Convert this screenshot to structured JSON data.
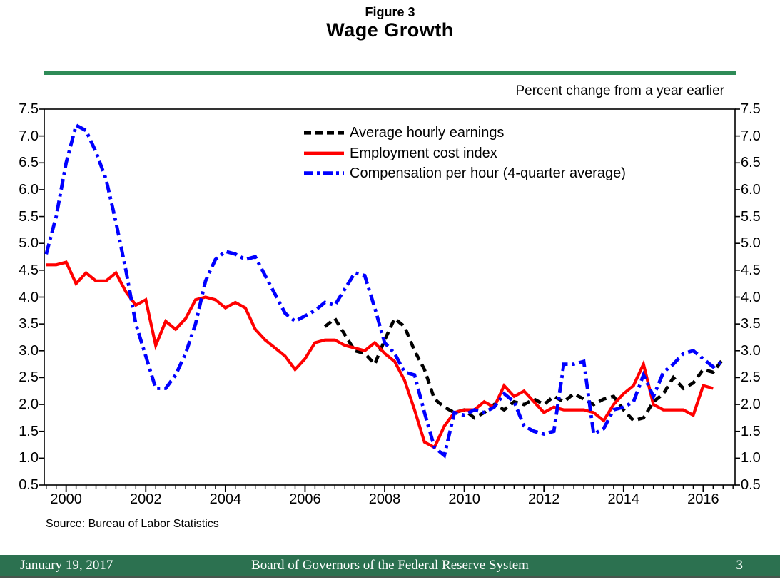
{
  "page": {
    "figure_label": "Figure 3",
    "title": "Wage Growth",
    "axis_note": "Percent change from a year earlier",
    "source": "Source:  Bureau of Labor Statistics",
    "footer": {
      "date": "January 19, 2017",
      "organization": "Board of Governors of the Federal Reserve System",
      "page_number": "3"
    }
  },
  "colors": {
    "green_rule": "#2e8b57",
    "footer_band": "#2c7150",
    "footer_border": "#47564d",
    "axis": "#000000",
    "ahe": "#000000",
    "eci": "#ff0000",
    "cph": "#0000ff"
  },
  "chart_data": {
    "type": "line",
    "title": "Wage Growth",
    "subtitle": "Figure 3",
    "ylabel": "Percent change from a year earlier",
    "xlabel": "",
    "x_range": [
      1999.45,
      2016.8
    ],
    "y_range": [
      0.5,
      7.5
    ],
    "y_ticks": [
      0.5,
      1.0,
      1.5,
      2.0,
      2.5,
      3.0,
      3.5,
      4.0,
      4.5,
      5.0,
      5.5,
      6.0,
      6.5,
      7.0,
      7.5
    ],
    "x_tick_years": [
      2000,
      2002,
      2004,
      2006,
      2008,
      2010,
      2012,
      2014,
      2016
    ],
    "minor_tick_step_years": 0.25,
    "grid": false,
    "legend_position": "inside-top-center",
    "series": [
      {
        "name": "Average hourly earnings",
        "color": "#000000",
        "style": "dashed",
        "x": [
          2006.5,
          2006.75,
          2007.0,
          2007.25,
          2007.5,
          2007.75,
          2008.0,
          2008.25,
          2008.5,
          2008.75,
          2009.0,
          2009.25,
          2009.5,
          2009.75,
          2010.0,
          2010.25,
          2010.5,
          2010.75,
          2011.0,
          2011.25,
          2011.5,
          2011.75,
          2012.0,
          2012.25,
          2012.5,
          2012.75,
          2013.0,
          2013.25,
          2013.5,
          2013.75,
          2014.0,
          2014.25,
          2014.5,
          2014.75,
          2015.0,
          2015.25,
          2015.5,
          2015.75,
          2016.0,
          2016.25,
          2016.5
        ],
        "values": [
          3.45,
          3.6,
          3.3,
          3.0,
          2.95,
          2.75,
          3.2,
          3.6,
          3.45,
          3.0,
          2.65,
          2.1,
          1.95,
          1.85,
          1.9,
          1.75,
          1.85,
          2.0,
          1.9,
          2.05,
          2.0,
          2.1,
          2.0,
          2.15,
          2.05,
          2.2,
          2.1,
          2.0,
          2.1,
          2.15,
          1.9,
          1.7,
          1.75,
          2.05,
          2.2,
          2.5,
          2.3,
          2.4,
          2.65,
          2.6,
          2.85
        ]
      },
      {
        "name": "Employment cost index",
        "color": "#ff0000",
        "style": "solid",
        "x": [
          1999.5,
          1999.75,
          2000.0,
          2000.25,
          2000.5,
          2000.75,
          2001.0,
          2001.25,
          2001.5,
          2001.75,
          2002.0,
          2002.25,
          2002.5,
          2002.75,
          2003.0,
          2003.25,
          2003.5,
          2003.75,
          2004.0,
          2004.25,
          2004.5,
          2004.75,
          2005.0,
          2005.25,
          2005.5,
          2005.75,
          2006.0,
          2006.25,
          2006.5,
          2006.75,
          2007.0,
          2007.25,
          2007.5,
          2007.75,
          2008.0,
          2008.25,
          2008.5,
          2008.75,
          2009.0,
          2009.25,
          2009.5,
          2009.75,
          2010.0,
          2010.25,
          2010.5,
          2010.75,
          2011.0,
          2011.25,
          2011.5,
          2011.75,
          2012.0,
          2012.25,
          2012.5,
          2012.75,
          2013.0,
          2013.25,
          2013.5,
          2013.75,
          2014.0,
          2014.25,
          2014.5,
          2014.75,
          2015.0,
          2015.25,
          2015.5,
          2015.75,
          2016.0,
          2016.25
        ],
        "values": [
          4.6,
          4.6,
          4.65,
          4.25,
          4.45,
          4.3,
          4.3,
          4.45,
          4.1,
          3.85,
          3.95,
          3.1,
          3.55,
          3.4,
          3.6,
          3.95,
          4.0,
          3.95,
          3.8,
          3.9,
          3.8,
          3.4,
          3.2,
          3.05,
          2.9,
          2.65,
          2.85,
          3.15,
          3.2,
          3.2,
          3.1,
          3.05,
          3.0,
          3.15,
          2.95,
          2.8,
          2.45,
          1.9,
          1.3,
          1.2,
          1.6,
          1.85,
          1.9,
          1.9,
          2.05,
          1.95,
          2.35,
          2.15,
          2.25,
          2.05,
          1.85,
          1.95,
          1.9,
          1.9,
          1.9,
          1.85,
          1.7,
          2.0,
          2.2,
          2.35,
          2.75,
          2.0,
          1.9,
          1.9,
          1.9,
          1.8,
          2.35,
          2.3
        ]
      },
      {
        "name": "Compensation per hour (4-quarter average)",
        "color": "#0000ff",
        "style": "dash-dot",
        "x": [
          1999.5,
          1999.75,
          2000.0,
          2000.25,
          2000.5,
          2000.75,
          2001.0,
          2001.25,
          2001.5,
          2001.75,
          2002.0,
          2002.25,
          2002.5,
          2002.75,
          2003.0,
          2003.25,
          2003.5,
          2003.75,
          2004.0,
          2004.25,
          2004.5,
          2004.75,
          2005.0,
          2005.25,
          2005.5,
          2005.75,
          2006.0,
          2006.25,
          2006.5,
          2006.75,
          2007.0,
          2007.25,
          2007.5,
          2007.75,
          2008.0,
          2008.25,
          2008.5,
          2008.75,
          2009.0,
          2009.25,
          2009.5,
          2009.75,
          2010.0,
          2010.25,
          2010.5,
          2010.75,
          2011.0,
          2011.25,
          2011.5,
          2011.75,
          2012.0,
          2012.25,
          2012.5,
          2012.75,
          2013.0,
          2013.25,
          2013.5,
          2013.75,
          2014.0,
          2014.25,
          2014.5,
          2014.75,
          2015.0,
          2015.25,
          2015.5,
          2015.75,
          2016.0,
          2016.25,
          2016.5
        ],
        "values": [
          4.8,
          5.5,
          6.5,
          7.2,
          7.1,
          6.7,
          6.2,
          5.4,
          4.5,
          3.5,
          2.9,
          2.3,
          2.3,
          2.55,
          2.95,
          3.5,
          4.3,
          4.7,
          4.85,
          4.8,
          4.7,
          4.75,
          4.4,
          4.05,
          3.7,
          3.55,
          3.65,
          3.75,
          3.9,
          3.85,
          4.15,
          4.45,
          4.4,
          3.8,
          3.15,
          2.95,
          2.6,
          2.55,
          1.85,
          1.2,
          1.05,
          1.85,
          1.8,
          1.9,
          1.85,
          1.95,
          2.2,
          2.05,
          1.6,
          1.5,
          1.45,
          1.5,
          2.75,
          2.75,
          2.8,
          1.45,
          1.55,
          1.9,
          1.95,
          2.05,
          2.55,
          2.15,
          2.6,
          2.75,
          2.95,
          3.0,
          2.85,
          2.7,
          2.8
        ]
      }
    ]
  }
}
